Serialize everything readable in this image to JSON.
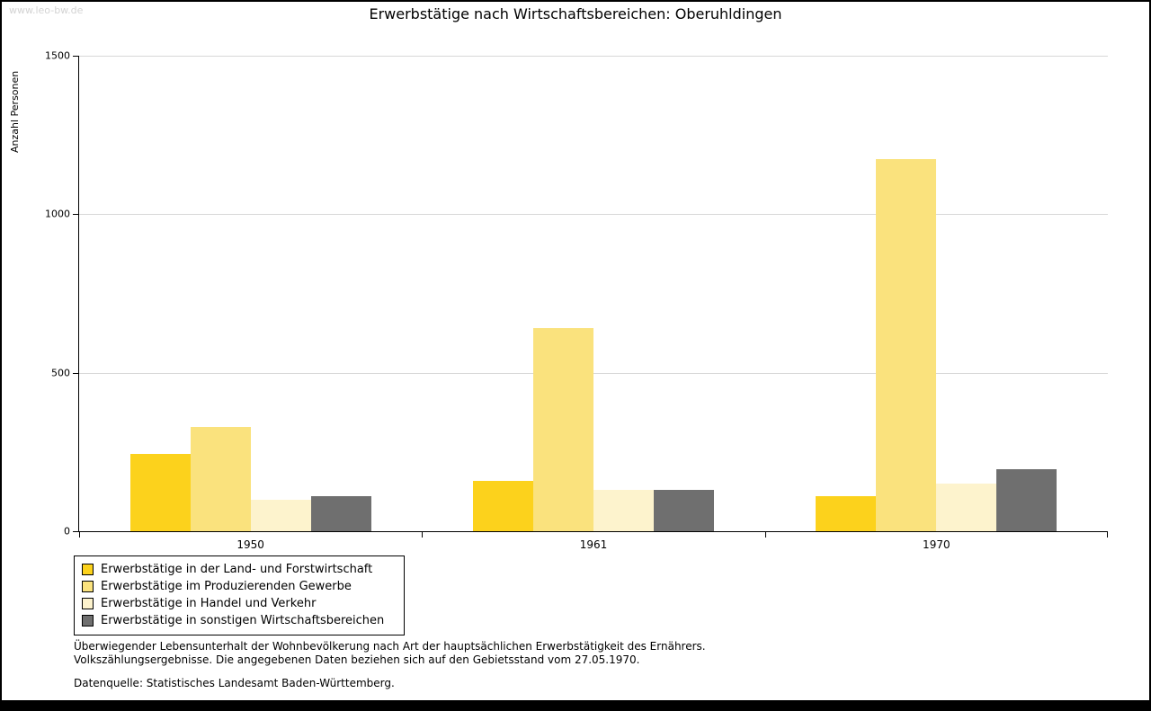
{
  "watermark": "www.leo-bw.de",
  "title": "Erwerbstätige nach Wirtschaftsbereichen: Oberuhldingen",
  "footnotes": {
    "line1": "Überwiegender Lebensunterhalt der Wohnbevölkerung nach Art der hauptsächlichen Erwerbstätigkeit des Ernährers.",
    "line2": "Volkszählungsergebnisse. Die angegebenen Daten beziehen sich auf den Gebietsstand vom 27.05.1970.",
    "source": "Datenquelle: Statistisches Landesamt Baden-Württemberg."
  },
  "chart_data": {
    "type": "bar",
    "title": "Erwerbstätige nach Wirtschaftsbereichen: Oberuhldingen",
    "xlabel": "",
    "ylabel": "Anzahl Personen",
    "categories": [
      "1950",
      "1961",
      "1970"
    ],
    "series": [
      {
        "name": "Erwerbstätige in der Land- und Forstwirtschaft",
        "color": "#fcd21c",
        "values": [
          245,
          160,
          110
        ]
      },
      {
        "name": "Erwerbstätige im Produzierenden Gewerbe",
        "color": "#fae27d",
        "values": [
          330,
          640,
          1175
        ]
      },
      {
        "name": "Erwerbstätige in Handel und Verkehr",
        "color": "#fdf3cd",
        "values": [
          100,
          130,
          150
        ]
      },
      {
        "name": "Erwerbstätige in sonstigen Wirtschaftsbereichen",
        "color": "#6f6f6f",
        "values": [
          110,
          130,
          195
        ]
      }
    ],
    "ylim": [
      0,
      1500
    ],
    "yticks": [
      0,
      500,
      1000,
      1500
    ],
    "grid": "horizontal",
    "legend_position": "bottom-left",
    "gridline_color": "#d8d8d8"
  }
}
